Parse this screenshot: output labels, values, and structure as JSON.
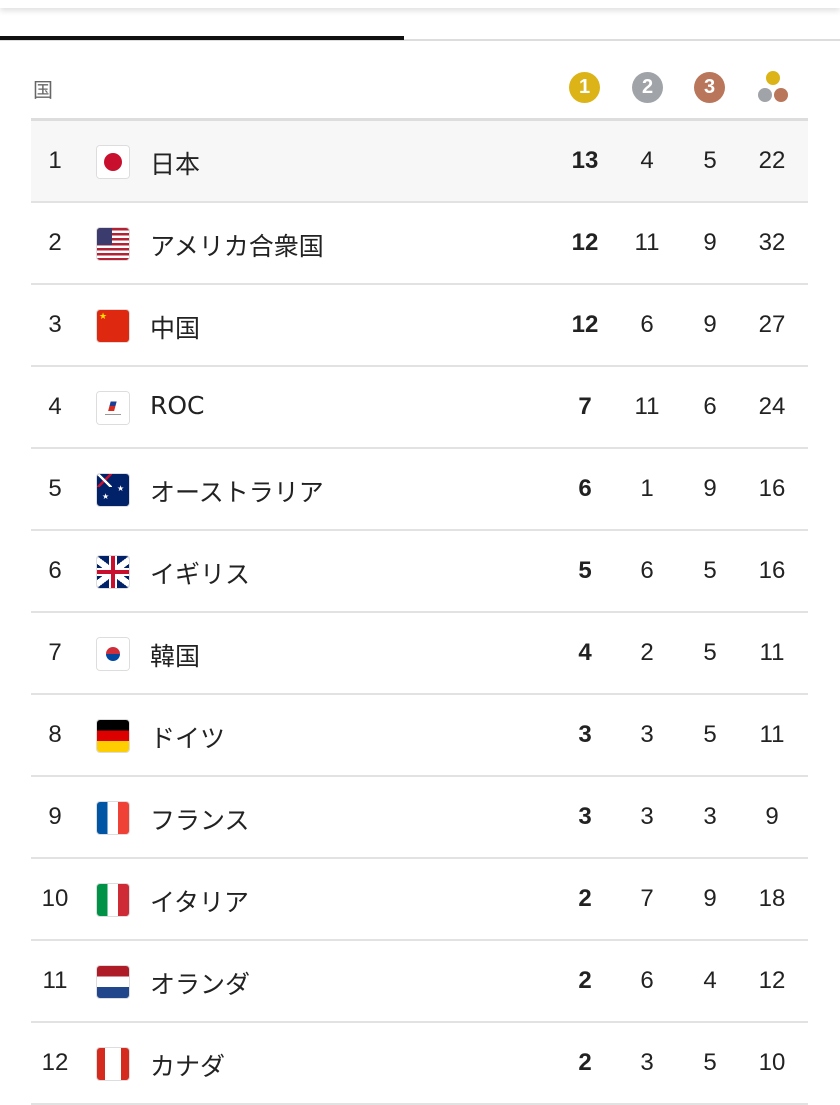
{
  "header": {
    "country_label": "国",
    "gold_label": "1",
    "silver_label": "2",
    "bronze_label": "3",
    "total_icon": "medals-total-icon"
  },
  "colors": {
    "gold": "#dcb418",
    "silver": "#a0a3a8",
    "bronze": "#b9765a"
  },
  "rows": [
    {
      "rank": "1",
      "country": "日本",
      "flag": "jp",
      "gold": "13",
      "silver": "4",
      "bronze": "5",
      "total": "22"
    },
    {
      "rank": "2",
      "country": "アメリカ合衆国",
      "flag": "us",
      "gold": "12",
      "silver": "11",
      "bronze": "9",
      "total": "32"
    },
    {
      "rank": "3",
      "country": "中国",
      "flag": "cn",
      "gold": "12",
      "silver": "6",
      "bronze": "9",
      "total": "27"
    },
    {
      "rank": "4",
      "country": "ROC",
      "flag": "roc",
      "gold": "7",
      "silver": "11",
      "bronze": "6",
      "total": "24"
    },
    {
      "rank": "5",
      "country": "オーストラリア",
      "flag": "au",
      "gold": "6",
      "silver": "1",
      "bronze": "9",
      "total": "16"
    },
    {
      "rank": "6",
      "country": "イギリス",
      "flag": "gb",
      "gold": "5",
      "silver": "6",
      "bronze": "5",
      "total": "16"
    },
    {
      "rank": "7",
      "country": "韓国",
      "flag": "kr",
      "gold": "4",
      "silver": "2",
      "bronze": "5",
      "total": "11"
    },
    {
      "rank": "8",
      "country": "ドイツ",
      "flag": "de",
      "gold": "3",
      "silver": "3",
      "bronze": "5",
      "total": "11"
    },
    {
      "rank": "9",
      "country": "フランス",
      "flag": "fr",
      "gold": "3",
      "silver": "3",
      "bronze": "3",
      "total": "9"
    },
    {
      "rank": "10",
      "country": "イタリア",
      "flag": "it",
      "gold": "2",
      "silver": "7",
      "bronze": "9",
      "total": "18"
    },
    {
      "rank": "11",
      "country": "オランダ",
      "flag": "nl",
      "gold": "2",
      "silver": "6",
      "bronze": "4",
      "total": "12"
    },
    {
      "rank": "12",
      "country": "カナダ",
      "flag": "ca",
      "gold": "2",
      "silver": "3",
      "bronze": "5",
      "total": "10"
    }
  ]
}
